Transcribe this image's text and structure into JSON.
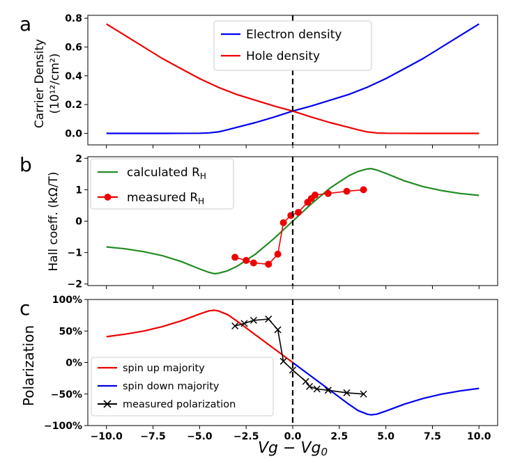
{
  "chart_data": [
    {
      "panel": "a",
      "type": "line",
      "ylabel_line1": "Carrier Density",
      "ylabel_line2": "(10¹²/cm²)",
      "xlim": [
        -11,
        11
      ],
      "ylim": [
        -0.08,
        0.82
      ],
      "yticks": [
        0.0,
        0.2,
        0.4,
        0.6,
        0.8
      ],
      "ytick_labels": [
        "0.0",
        "0.2",
        "0.4",
        "0.6",
        "0.8"
      ],
      "series": [
        {
          "name": "Electron density",
          "color": "#0000ee",
          "x": [
            -10,
            -7,
            -5,
            -4.5,
            -4,
            -3.5,
            -3,
            -2,
            -1,
            0,
            1,
            2,
            3,
            4,
            5,
            6,
            7,
            8,
            9,
            10
          ],
          "y": [
            0.0,
            0.0,
            0.001,
            0.003,
            0.01,
            0.025,
            0.042,
            0.075,
            0.113,
            0.155,
            0.19,
            0.23,
            0.27,
            0.32,
            0.38,
            0.45,
            0.52,
            0.6,
            0.68,
            0.76
          ]
        },
        {
          "name": "Hole density",
          "color": "#ee0000",
          "x": [
            -10,
            -9,
            -8,
            -7,
            -6,
            -5,
            -4,
            -3,
            -2,
            -1,
            0,
            1,
            2,
            3,
            3.5,
            4,
            4.5,
            5,
            7,
            10
          ],
          "y": [
            0.76,
            0.68,
            0.6,
            0.52,
            0.45,
            0.38,
            0.32,
            0.27,
            0.23,
            0.19,
            0.155,
            0.113,
            0.075,
            0.042,
            0.025,
            0.01,
            0.003,
            0.001,
            0.0,
            0.0
          ]
        }
      ],
      "vline_x": 0,
      "legend": [
        "Electron  density",
        "Hole  density"
      ]
    },
    {
      "panel": "b",
      "type": "line",
      "ylabel": "Hall coeff. (kΩ/T)",
      "xlim": [
        -11,
        11
      ],
      "ylim": [
        -2.05,
        2.05
      ],
      "yticks": [
        -2,
        -1,
        0,
        1,
        2
      ],
      "ytick_labels": [
        "−2",
        "−1",
        "0",
        "1",
        "2"
      ],
      "series": [
        {
          "name": "calculated R_H",
          "color": "#228b22",
          "x": [
            -10,
            -9,
            -8,
            -7,
            -6,
            -5,
            -4.5,
            -4.2,
            -4,
            -3.5,
            -3,
            -2,
            -1,
            0,
            1,
            2,
            3,
            3.5,
            4,
            4.2,
            4.5,
            5,
            6,
            7,
            8,
            9,
            10
          ],
          "y": [
            -0.82,
            -0.88,
            -0.97,
            -1.1,
            -1.28,
            -1.52,
            -1.63,
            -1.67,
            -1.66,
            -1.58,
            -1.44,
            -1.05,
            -0.55,
            0.0,
            0.55,
            1.05,
            1.44,
            1.58,
            1.66,
            1.67,
            1.63,
            1.52,
            1.28,
            1.1,
            0.97,
            0.88,
            0.82
          ]
        },
        {
          "name": "measured R_H",
          "color": "#ee0000",
          "x": [
            -3.1,
            -2.5,
            -2.1,
            -1.3,
            -0.8,
            -0.5,
            -0.1,
            0.3,
            0.8,
            1.0,
            1.2,
            1.9,
            2.9,
            3.8
          ],
          "y": [
            -1.15,
            -1.25,
            -1.33,
            -1.37,
            -1.05,
            -0.05,
            0.18,
            0.28,
            0.6,
            0.72,
            0.83,
            0.88,
            0.95,
            1.0
          ]
        }
      ],
      "vline_x": 0,
      "legend_calc": "calculated R",
      "legend_meas": "measured R",
      "legend_sub": "H"
    },
    {
      "panel": "c",
      "type": "line",
      "ylabel": "Polarization",
      "xlabel": "Vg − Vg",
      "xlabel_sub": "0",
      "xlim": [
        -11,
        11
      ],
      "ylim": [
        -1.0,
        1.0
      ],
      "yticks": [
        -1.0,
        -0.5,
        0.0,
        0.5,
        1.0
      ],
      "ytick_labels": [
        "−100%",
        "−50%",
        "0%",
        "50%",
        "100%"
      ],
      "xticks": [
        -10,
        -7.5,
        -5,
        -2.5,
        0,
        2.5,
        5,
        7.5,
        10
      ],
      "xtick_labels": [
        "−10.0",
        "−7.5",
        "−5.0",
        "−2.5",
        "0.0",
        "2.5",
        "5.0",
        "7.5",
        "10.0"
      ],
      "series": [
        {
          "name": "spin up majority",
          "color": "#ee0000",
          "x": [
            -10,
            -9,
            -8,
            -7,
            -6,
            -5,
            -4.5,
            -4.2,
            -4,
            -3.5,
            -3,
            -2,
            -1,
            0
          ],
          "y": [
            0.41,
            0.45,
            0.5,
            0.57,
            0.66,
            0.77,
            0.82,
            0.83,
            0.82,
            0.76,
            0.66,
            0.44,
            0.22,
            0.0
          ]
        },
        {
          "name": "spin down majority",
          "color": "#0000ee",
          "x": [
            0,
            1,
            2,
            3,
            3.5,
            4,
            4.2,
            4.5,
            5,
            6,
            7,
            8,
            9,
            10
          ],
          "y": [
            0.0,
            -0.22,
            -0.44,
            -0.66,
            -0.76,
            -0.82,
            -0.83,
            -0.82,
            -0.77,
            -0.66,
            -0.57,
            -0.5,
            -0.45,
            -0.41
          ]
        },
        {
          "name": "measured polarization",
          "color": "#000000",
          "x": [
            -3.1,
            -2.6,
            -2.1,
            -1.3,
            -0.8,
            -0.5,
            0.0,
            0.7,
            0.9,
            1.3,
            1.9,
            2.9,
            3.8
          ],
          "y": [
            0.58,
            0.62,
            0.67,
            0.69,
            0.52,
            0.02,
            -0.12,
            -0.3,
            -0.38,
            -0.42,
            -0.44,
            -0.48,
            -0.5
          ]
        }
      ],
      "vline_x": 0,
      "legend": [
        "spin up majority",
        "spin down majority",
        "measured polarization"
      ]
    }
  ]
}
